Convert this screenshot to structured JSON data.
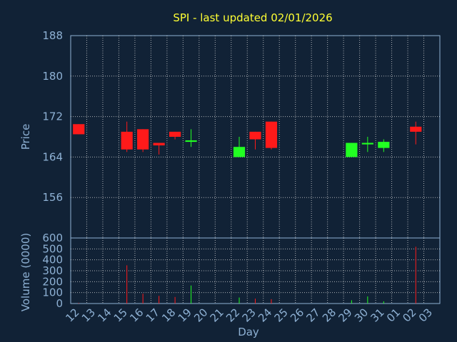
{
  "chart_data": [
    {
      "type": "candlestick",
      "title": "SPI - last updated 02/01/2026",
      "ylabel": "Price",
      "ylim": [
        148,
        188
      ],
      "yticks": [
        156,
        164,
        172,
        180,
        188
      ],
      "grid": true,
      "colors": {
        "up": "#22ff22",
        "down": "#ff1a1a",
        "axis": "#8eb1d4",
        "title": "#ffff33",
        "background": "#112236"
      },
      "candles": [
        {
          "day": "12",
          "open": 170.5,
          "high": 170.5,
          "low": 168.5,
          "close": 168.5
        },
        {
          "day": "15",
          "open": 169.0,
          "high": 171.0,
          "low": 165.0,
          "close": 165.5
        },
        {
          "day": "16",
          "open": 169.5,
          "high": 169.5,
          "low": 165.0,
          "close": 165.5
        },
        {
          "day": "17",
          "open": 166.8,
          "high": 166.8,
          "low": 164.5,
          "close": 166.3
        },
        {
          "day": "18",
          "open": 169.0,
          "high": 169.0,
          "low": 167.5,
          "close": 168.0
        },
        {
          "day": "19",
          "open": 167.0,
          "high": 169.5,
          "low": 166.0,
          "close": 167.3
        },
        {
          "day": "22",
          "open": 164.0,
          "high": 168.0,
          "low": 164.0,
          "close": 166.0
        },
        {
          "day": "23",
          "open": 169.0,
          "high": 169.0,
          "low": 165.5,
          "close": 167.5
        },
        {
          "day": "24",
          "open": 171.0,
          "high": 171.0,
          "low": 165.5,
          "close": 165.8
        },
        {
          "day": "29",
          "open": 164.0,
          "high": 166.8,
          "low": 164.0,
          "close": 166.8
        },
        {
          "day": "30",
          "open": 166.5,
          "high": 168.0,
          "low": 165.0,
          "close": 166.8
        },
        {
          "day": "31",
          "open": 165.8,
          "high": 167.5,
          "low": 165.0,
          "close": 167.0
        },
        {
          "day": "02",
          "open": 170.0,
          "high": 171.0,
          "low": 166.5,
          "close": 169.0
        }
      ]
    },
    {
      "type": "bar",
      "ylabel": "Volume (0000)",
      "xlabel": "Day",
      "ylim": [
        0,
        600
      ],
      "yticks": [
        0,
        100,
        200,
        300,
        400,
        500,
        600
      ],
      "grid": true,
      "categories": [
        "12",
        "13",
        "14",
        "15",
        "16",
        "17",
        "18",
        "19",
        "20",
        "21",
        "22",
        "23",
        "24",
        "25",
        "26",
        "27",
        "28",
        "29",
        "30",
        "31",
        "01",
        "02",
        "03"
      ],
      "bars": [
        {
          "day": "12",
          "value": 5,
          "direction": "down"
        },
        {
          "day": "15",
          "value": 350,
          "direction": "down"
        },
        {
          "day": "16",
          "value": 90,
          "direction": "down"
        },
        {
          "day": "17",
          "value": 70,
          "direction": "down"
        },
        {
          "day": "18",
          "value": 60,
          "direction": "down"
        },
        {
          "day": "19",
          "value": 165,
          "direction": "up"
        },
        {
          "day": "22",
          "value": 55,
          "direction": "up"
        },
        {
          "day": "23",
          "value": 45,
          "direction": "down"
        },
        {
          "day": "24",
          "value": 40,
          "direction": "down"
        },
        {
          "day": "29",
          "value": 30,
          "direction": "up"
        },
        {
          "day": "30",
          "value": 65,
          "direction": "up"
        },
        {
          "day": "31",
          "value": 20,
          "direction": "up"
        },
        {
          "day": "02",
          "value": 520,
          "direction": "down"
        }
      ]
    }
  ]
}
